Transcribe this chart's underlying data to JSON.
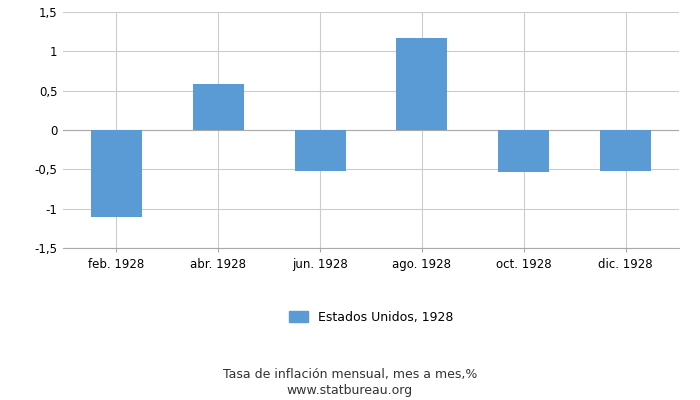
{
  "categories": [
    "feb. 1928",
    "abr. 1928",
    "jun. 1928",
    "ago. 1928",
    "oct. 1928",
    "dic. 1928"
  ],
  "values": [
    -1.1,
    0.58,
    -0.52,
    1.17,
    -0.53,
    -0.52
  ],
  "bar_color": "#5b9bd5",
  "bar_width": 0.5,
  "ylim": [
    -1.5,
    1.5
  ],
  "yticks": [
    -1.5,
    -1.0,
    -0.5,
    0.0,
    0.5,
    1.0,
    1.5
  ],
  "ytick_labels": [
    "-1,5",
    "-1",
    "-0,5",
    "0",
    "0,5",
    "1",
    "1,5"
  ],
  "grid_color": "#cccccc",
  "background_color": "#ffffff",
  "legend_label": "Estados Unidos, 1928",
  "footer_line1": "Tasa de inflación mensual, mes a mes,%",
  "footer_line2": "www.statbureau.org",
  "axis_fontsize": 8.5,
  "legend_fontsize": 9,
  "footer_fontsize": 9
}
